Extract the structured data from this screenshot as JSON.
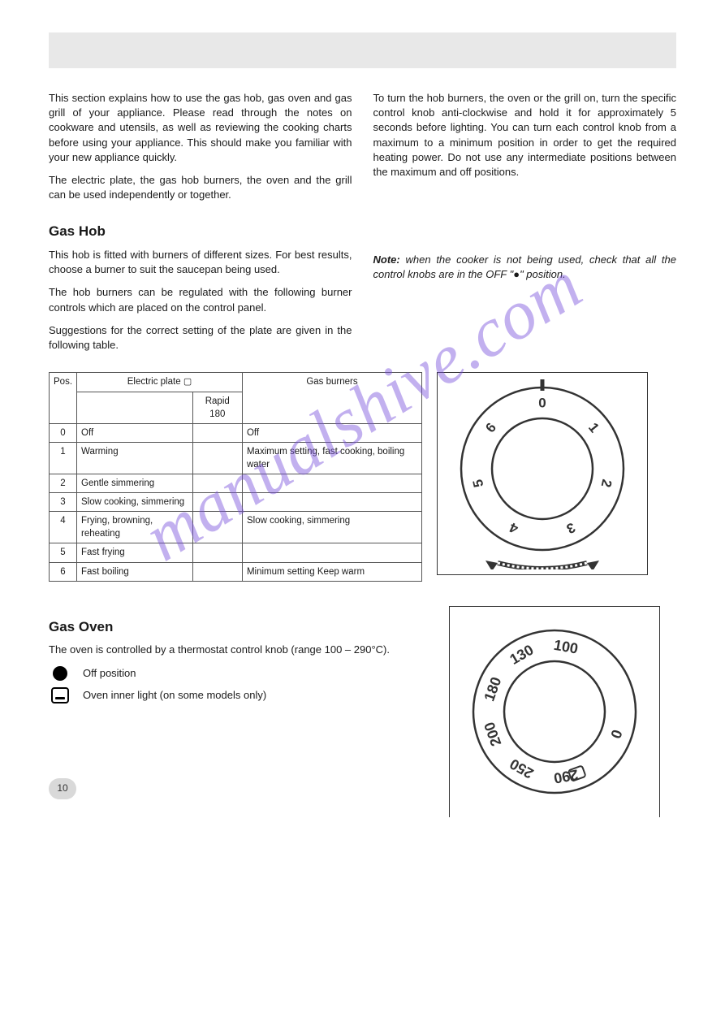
{
  "watermark": "manualshive.com",
  "page_number": "10",
  "intro": {
    "p1": "This section explains how to use the gas hob, gas oven and gas grill of your appliance. Please read through the notes on cookware and utensils, as well as reviewing the cooking charts before using your appliance. This should make you familiar with your new appliance quickly.",
    "p2": "The electric plate, the gas hob burners, the oven and the grill can be used independently or together.",
    "p3": "To turn the hob burners, the oven or the grill on, turn the specific control knob anti-clockwise and hold it for approximately 5 seconds before lighting. You can turn each control knob from a maximum to a minimum position in order to get the required heating power. Do not use any intermediate positions between the maximum and off positions."
  },
  "hob": {
    "heading": "Gas Hob",
    "p1": "This hob is fitted with burners of different sizes. For best results, choose a burner to suit the saucepan being used.",
    "p2": "The hob burners can be regulated with the following burner controls which are placed on the control panel.",
    "p3": "Suggestions for the correct setting of the plate are given in the following table.",
    "note_label": "Note:",
    "note_text": "when the cooker is not being used, check that all the control knobs are in the OFF \"●\" position."
  },
  "table": {
    "headers": {
      "pos": "Pos.",
      "plate": "Electric plate",
      "rapid": "Rapid 180",
      "gas": "Gas burners"
    },
    "rows": [
      {
        "pos": "0",
        "plate": "Off",
        "rapid": "",
        "gas": "Off"
      },
      {
        "pos": "1",
        "plate": "Warming",
        "rapid": "",
        "gas": "Maximum setting, fast cooking, boiling water"
      },
      {
        "pos": "2",
        "plate": "Gentle simmering",
        "rapid": "",
        "gas": ""
      },
      {
        "pos": "3",
        "plate": "Slow cooking, simmering",
        "rapid": "",
        "gas": ""
      },
      {
        "pos": "4",
        "plate": "Frying, browning, reheating",
        "rapid": "",
        "gas": "Slow cooking, simmering"
      },
      {
        "pos": "5",
        "plate": "Fast frying",
        "rapid": "",
        "gas": ""
      },
      {
        "pos": "6",
        "plate": "Fast boiling",
        "rapid": "",
        "gas": "Minimum setting Keep warm"
      }
    ]
  },
  "oven": {
    "heading": "Gas Oven",
    "p1": "The oven is controlled by a thermostat control knob (range 100 – 290°C).",
    "legend": [
      {
        "icon": "off",
        "text": "Off position"
      },
      {
        "icon": "light",
        "text": "Oven inner light (on some models only)"
      }
    ]
  },
  "dial1": {
    "labels": [
      "0",
      "1",
      "2",
      "3",
      "4",
      "5",
      "6"
    ],
    "stroke": "#333333",
    "fontsize": 17,
    "outer_r": 100,
    "inner_r": 62
  },
  "dial2": {
    "labels": [
      "0",
      "100",
      "130",
      "180",
      "200",
      "250",
      "290"
    ],
    "stroke": "#333333",
    "fontsize": 18,
    "outer_r": 100,
    "inner_r": 62
  }
}
